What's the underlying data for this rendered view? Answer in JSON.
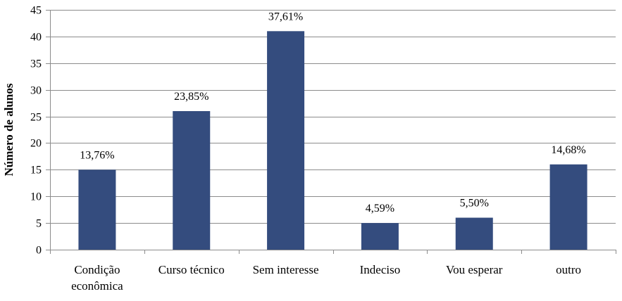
{
  "chart_data": {
    "type": "bar",
    "title": "",
    "xlabel": "",
    "ylabel": "Número de alunos",
    "ylim": [
      0,
      45
    ],
    "yticks": [
      0,
      5,
      10,
      15,
      20,
      25,
      30,
      35,
      40,
      45
    ],
    "grid": true,
    "categories": [
      [
        "Condição",
        "econômica"
      ],
      [
        "Curso técnico"
      ],
      [
        "Sem interesse"
      ],
      [
        "Indeciso"
      ],
      [
        "Vou esperar"
      ],
      [
        "outro"
      ]
    ],
    "values": [
      15,
      26,
      41,
      5,
      6,
      16
    ],
    "data_labels": [
      "13,76%",
      "23,85%",
      "37,61%",
      "4,59%",
      "5,50%",
      "14,68%"
    ],
    "bar_color": "#344c7e"
  }
}
